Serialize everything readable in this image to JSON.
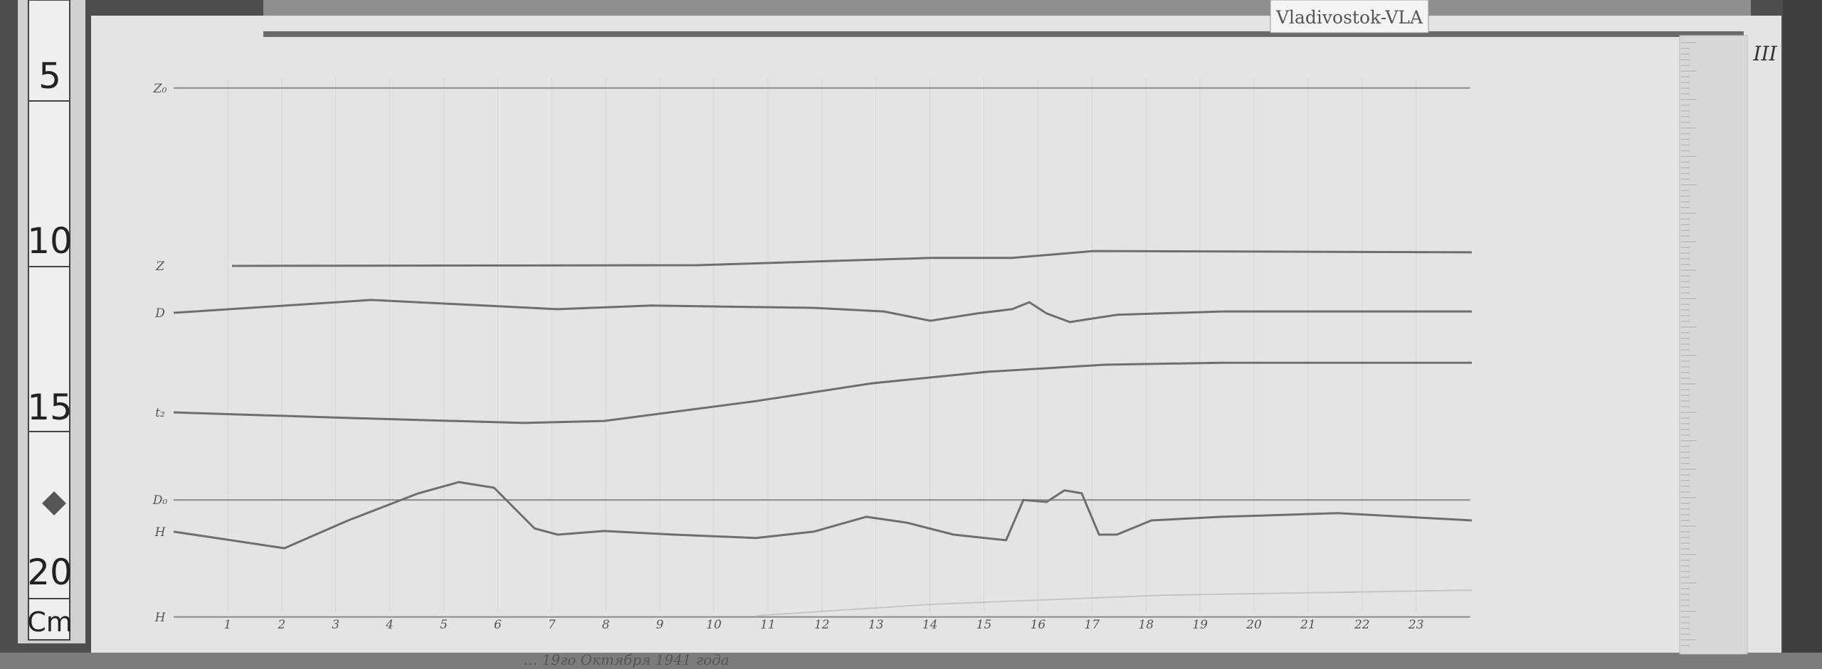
{
  "station_label": "Vladivostok-VLA",
  "sheet_mark": "III",
  "caption": "… 19го Октября 1941 года",
  "ruler": {
    "labels": [
      "5",
      "10",
      "15",
      "20"
    ],
    "unit": "Cm"
  },
  "colors": {
    "paper": "#e4e4e4",
    "trace": "#6e6e6e",
    "background": "#4e4e4e"
  },
  "chart_data": {
    "type": "line",
    "title": "",
    "xlabel": "",
    "ylabel": "",
    "x_unit": "hour",
    "y_unit": "cm (on the left ruler scale)",
    "xlim": [
      0,
      24
    ],
    "ylim": [
      4,
      22
    ],
    "grid": true,
    "x_tick_labels": [
      "1",
      "2",
      "3",
      "4",
      "5",
      "6",
      "7",
      "8",
      "9",
      "10",
      "11",
      "12",
      "13",
      "14",
      "15",
      "16",
      "17",
      "18",
      "19",
      "20",
      "21",
      "22",
      "23"
    ],
    "series": [
      {
        "name": "Z₀",
        "kind": "baseline",
        "points": [
          [
            0,
            5.34
          ],
          [
            24,
            5.34
          ]
        ]
      },
      {
        "name": "Z",
        "points": [
          [
            1.08,
            10.72
          ],
          [
            9.7,
            10.7
          ],
          [
            14.01,
            10.48
          ],
          [
            15.52,
            10.48
          ],
          [
            17.03,
            10.27
          ],
          [
            24.03,
            10.31
          ]
        ]
      },
      {
        "name": "D",
        "points": [
          [
            0,
            12.14
          ],
          [
            3.66,
            11.75
          ],
          [
            7.11,
            12.03
          ],
          [
            8.84,
            11.92
          ],
          [
            11.85,
            11.99
          ],
          [
            13.15,
            12.1
          ],
          [
            14.01,
            12.38
          ],
          [
            14.87,
            12.16
          ],
          [
            15.52,
            12.03
          ],
          [
            15.84,
            11.82
          ],
          [
            16.16,
            12.16
          ],
          [
            16.59,
            12.42
          ],
          [
            17.46,
            12.2
          ],
          [
            19.4,
            12.1
          ],
          [
            21.55,
            12.1
          ],
          [
            24.03,
            12.1
          ]
        ]
      },
      {
        "name": "t₂",
        "points": [
          [
            0,
            15.15
          ],
          [
            3.23,
            15.32
          ],
          [
            6.47,
            15.47
          ],
          [
            7.97,
            15.41
          ],
          [
            10.78,
            14.81
          ],
          [
            12.93,
            14.27
          ],
          [
            15.09,
            13.92
          ],
          [
            17.24,
            13.71
          ],
          [
            19.4,
            13.65
          ],
          [
            24.03,
            13.65
          ]
        ]
      },
      {
        "name": "D₀",
        "kind": "baseline",
        "points": [
          [
            0,
            17.8
          ],
          [
            24,
            17.8
          ]
        ]
      },
      {
        "name": "H",
        "points": [
          [
            0,
            18.76
          ],
          [
            2.05,
            19.26
          ],
          [
            3.23,
            18.42
          ],
          [
            4.53,
            17.6
          ],
          [
            5.28,
            17.26
          ],
          [
            5.93,
            17.43
          ],
          [
            6.68,
            18.66
          ],
          [
            7.11,
            18.85
          ],
          [
            7.97,
            18.74
          ],
          [
            9.27,
            18.85
          ],
          [
            10.78,
            18.95
          ],
          [
            11.85,
            18.76
          ],
          [
            12.82,
            18.31
          ],
          [
            13.58,
            18.49
          ],
          [
            14.44,
            18.85
          ],
          [
            15.41,
            19.02
          ],
          [
            15.73,
            17.8
          ],
          [
            16.16,
            17.86
          ],
          [
            16.49,
            17.51
          ],
          [
            16.81,
            17.6
          ],
          [
            17.13,
            18.85
          ],
          [
            17.46,
            18.85
          ],
          [
            18.1,
            18.42
          ],
          [
            19.4,
            18.31
          ],
          [
            21.55,
            18.2
          ],
          [
            24.03,
            18.42
          ]
        ]
      },
      {
        "name": "H",
        "kind": "baseline",
        "points": [
          [
            0,
            21.34
          ],
          [
            24,
            21.34
          ]
        ]
      },
      {
        "kind": "faint",
        "points": [
          [
            10.78,
            21.3
          ],
          [
            14.01,
            20.96
          ],
          [
            18.32,
            20.68
          ],
          [
            24.03,
            20.53
          ]
        ]
      }
    ]
  }
}
